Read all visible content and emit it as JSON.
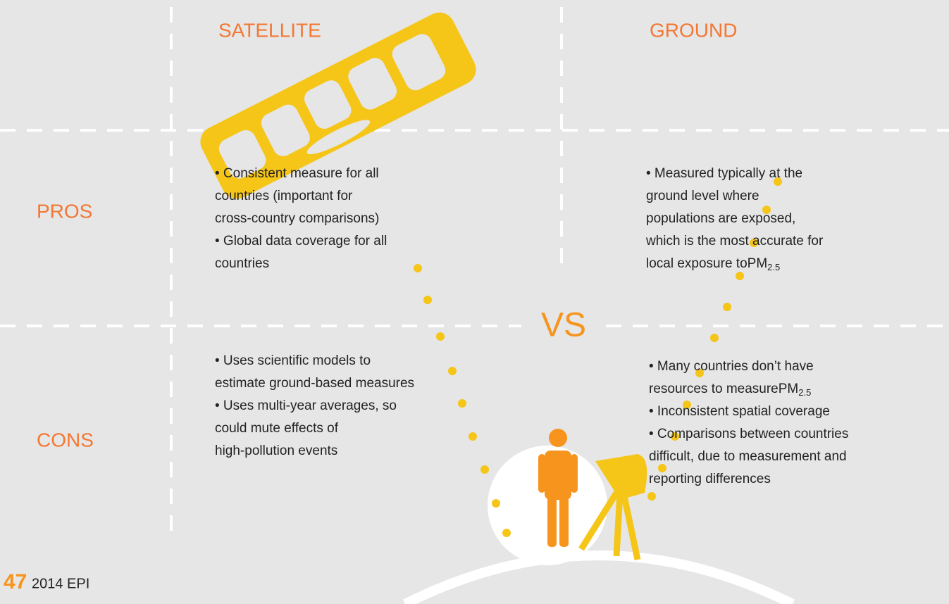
{
  "header": {
    "satellite": "SATELLITE",
    "ground": "GROUND"
  },
  "rows": {
    "pros": "PROS",
    "cons": "CONS"
  },
  "pros_satellite": [
    "• Consistent measure for all",
    "countries (important for",
    "cross-country comparisons)",
    "• Global data coverage for all",
    "countries"
  ],
  "pros_ground": {
    "lines": [
      "• Measured typically at the",
      "ground level where",
      "populations are exposed,",
      "which is the most accurate for",
      "local exposure to"
    ],
    "pm": "PM",
    "sub": "2.5"
  },
  "cons_satellite": [
    "• Uses scientific models to",
    "estimate ground-based measures",
    "• Uses multi-year averages, so",
    "could mute effects of",
    "high-pollution events"
  ],
  "cons_ground": {
    "first": "• Many countries don’t have",
    "second": "resources to measure",
    "pm": "PM",
    "sub": "2.5",
    "rest": [
      "• Inconsistent spatial coverage",
      "• Comparisons between countries",
      "difficult, due to measurement and",
      "reporting differences"
    ]
  },
  "vs": "VS",
  "footer": {
    "page": "47",
    "title": "2014 EPI"
  }
}
